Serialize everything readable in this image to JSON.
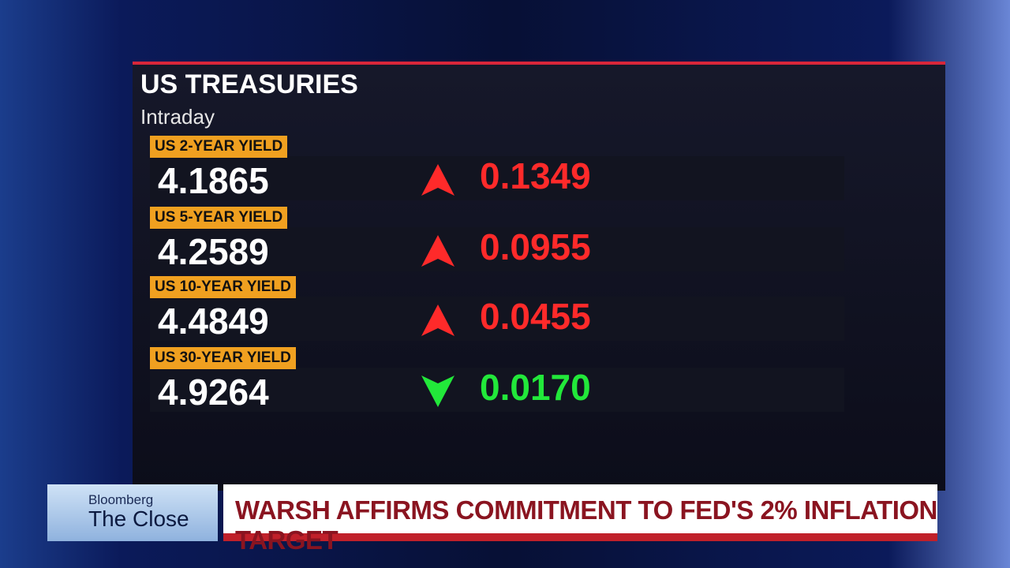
{
  "header": {
    "title": "US TREASURIES",
    "subtitle": "Intraday"
  },
  "rows": [
    {
      "label": "US 2-YEAR YIELD",
      "value": "4.1865",
      "change": "0.1349",
      "direction": "up",
      "color": "#ff2a2a"
    },
    {
      "label": "US 5-YEAR YIELD",
      "value": "4.2589",
      "change": "0.0955",
      "direction": "up",
      "color": "#ff2a2a"
    },
    {
      "label": "US 10-YEAR YIELD",
      "value": "4.4849",
      "change": "0.0455",
      "direction": "up",
      "color": "#ff2a2a"
    },
    {
      "label": "US 30-YEAR YIELD",
      "value": "4.9264",
      "change": "0.0170",
      "direction": "down",
      "color": "#22e83a"
    }
  ],
  "lower_third": {
    "brand": "Bloomberg",
    "show": "The Close",
    "headline": "WARSH AFFIRMS COMMITMENT TO FED'S 2% INFLATION TARGET"
  }
}
